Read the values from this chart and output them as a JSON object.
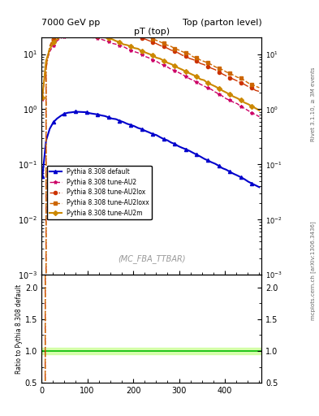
{
  "title_left": "7000 GeV pp",
  "title_right": "Top (parton level)",
  "plot_title": "pT (top)",
  "watermark": "(MC_FBA_TTBAR)",
  "rivet_label": "Rivet 3.1.10, ≥ 3M events",
  "mcplots_label": "mcplots.cern.ch [arXiv:1306.3436]",
  "xlabel": "",
  "ylabel_main": "",
  "ylabel_ratio": "Ratio to Pythia 8.308 default",
  "xlim": [
    0,
    480
  ],
  "ylim_main_log": [
    -3,
    1.3
  ],
  "ylim_ratio": [
    0.5,
    2.2
  ],
  "series": [
    {
      "label": "Pythia 8.308 default",
      "color": "#0000cc",
      "linestyle": "-",
      "marker": "^",
      "markersize": 3,
      "linewidth": 1.5,
      "ratio_color": "#00aa00",
      "is_reference": true
    },
    {
      "label": "Pythia 8.308 tune-AU2",
      "color": "#cc0066",
      "linestyle": "--",
      "marker": "*",
      "markersize": 3,
      "linewidth": 1.0,
      "ratio_color": "#cc0066",
      "is_reference": false
    },
    {
      "label": "Pythia 8.308 tune-AU2lox",
      "color": "#cc3300",
      "linestyle": "-.",
      "marker": "o",
      "markersize": 3,
      "linewidth": 1.0,
      "ratio_color": "#cc3300",
      "is_reference": false
    },
    {
      "label": "Pythia 8.308 tune-AU2loxx",
      "color": "#cc6600",
      "linestyle": "--",
      "marker": "s",
      "markersize": 3,
      "linewidth": 1.0,
      "ratio_color": "#cc6600",
      "is_reference": false
    },
    {
      "label": "Pythia 8.308 tune-AU2m",
      "color": "#cc8800",
      "linestyle": "-",
      "marker": "D",
      "markersize": 3,
      "linewidth": 1.5,
      "ratio_color": "#cc8800",
      "is_reference": false
    }
  ],
  "background_color": "#ffffff",
  "ratio_ref_band_color": "#ccff99",
  "ratio_ref_line_color": "#00bb00"
}
